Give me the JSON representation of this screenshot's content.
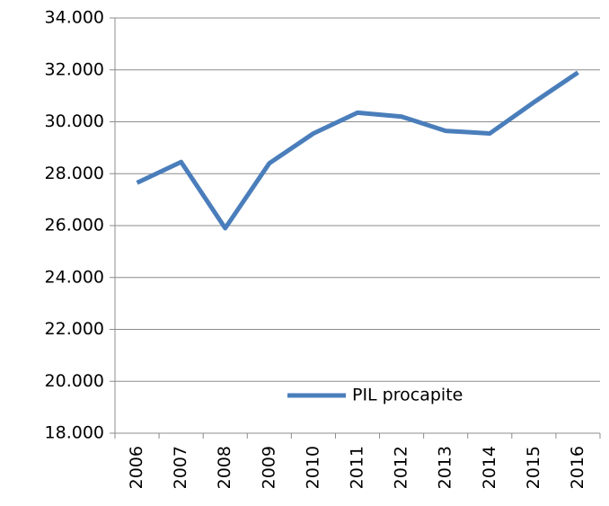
{
  "chart_data": {
    "type": "line",
    "categories": [
      "2006",
      "2007",
      "2008",
      "2009",
      "2010",
      "2011",
      "2012",
      "2013",
      "2014",
      "2015",
      "2016"
    ],
    "series": [
      {
        "name": "PIL procapite",
        "color": "#4a7ebb",
        "values": [
          27650,
          28450,
          25900,
          28400,
          29550,
          30350,
          30200,
          29650,
          29550,
          30750,
          31900
        ]
      }
    ],
    "ylim": [
      18000,
      34000
    ],
    "yticks": [
      {
        "value": 18000,
        "label": "18.000"
      },
      {
        "value": 20000,
        "label": "20.000"
      },
      {
        "value": 22000,
        "label": "22.000"
      },
      {
        "value": 24000,
        "label": "24.000"
      },
      {
        "value": 26000,
        "label": "26.000"
      },
      {
        "value": 28000,
        "label": "28.000"
      },
      {
        "value": 30000,
        "label": "30.000"
      },
      {
        "value": 32000,
        "label": "32.000"
      },
      {
        "value": 34000,
        "label": "34.000"
      }
    ],
    "grid": true
  }
}
